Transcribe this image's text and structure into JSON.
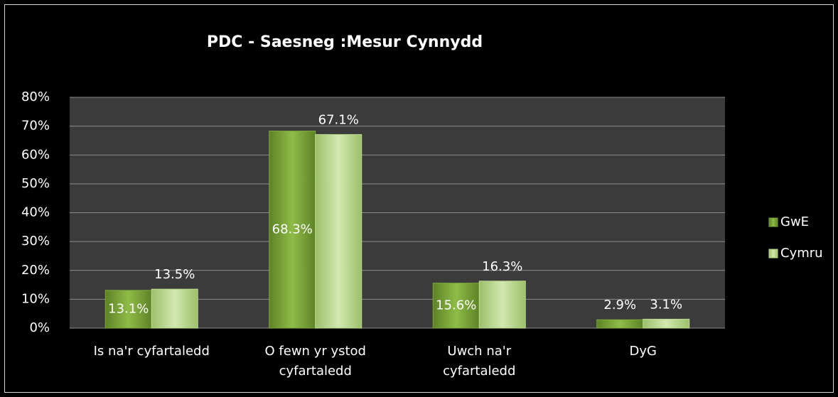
{
  "chart_data": {
    "type": "bar",
    "title": "PDC - Saesneg :Mesur Cynnydd",
    "categories": [
      [
        "Is na'r cyfartaledd"
      ],
      [
        "O fewn yr ystod",
        "cyfartaledd"
      ],
      [
        "Uwch na'r",
        "cyfartaledd"
      ],
      [
        "DyG"
      ]
    ],
    "series": [
      {
        "name": "GwE",
        "color": "#7ea83c",
        "values": [
          13.1,
          68.3,
          15.6,
          2.9
        ],
        "value_labels": [
          "13.1%",
          "68.3%",
          "15.6%",
          "2.9%"
        ]
      },
      {
        "name": "Cymru",
        "color": "#bcd98f",
        "values": [
          13.5,
          67.1,
          16.3,
          3.1
        ],
        "value_labels": [
          "13.5%",
          "67.1%",
          "16.3%",
          "3.1%"
        ]
      }
    ],
    "ylim": [
      0,
      80
    ],
    "yticks": [
      {
        "value": 0,
        "label": "0%"
      },
      {
        "value": 10,
        "label": "10%"
      },
      {
        "value": 20,
        "label": "20%"
      },
      {
        "value": 30,
        "label": "30%"
      },
      {
        "value": 40,
        "label": "40%"
      },
      {
        "value": 50,
        "label": "50%"
      },
      {
        "value": 60,
        "label": "60%"
      },
      {
        "value": 70,
        "label": "70%"
      },
      {
        "value": 80,
        "label": "80%"
      }
    ],
    "grid": true,
    "legend": "right"
  }
}
